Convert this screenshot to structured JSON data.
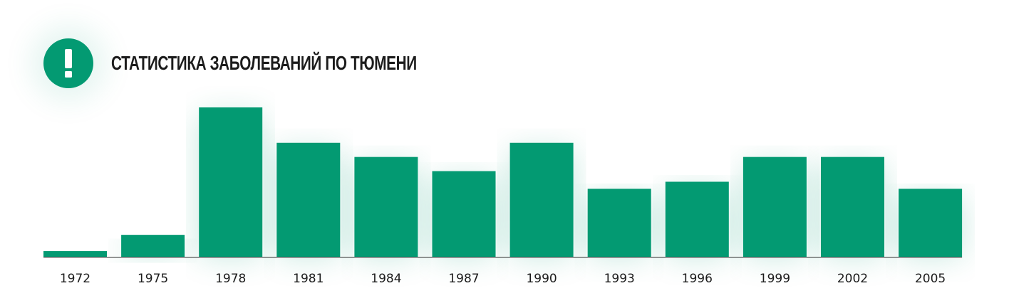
{
  "header": {
    "title": "Статистика заболеваний по Тюмени",
    "icon": "exclamation-icon"
  },
  "colors": {
    "accent": "#039a72",
    "baseline": "#2a2a2a",
    "text": "#1c1c1c"
  },
  "chart_data": {
    "type": "bar",
    "title": "Статистика заболеваний по Тюмени",
    "xlabel": "",
    "ylabel": "",
    "categories": [
      "1972",
      "1975",
      "1978",
      "1981",
      "1984",
      "1987",
      "1990",
      "1993",
      "1996",
      "1999",
      "2002",
      "2005"
    ],
    "values": [
      8,
      31,
      211,
      161,
      141,
      121,
      161,
      96,
      106,
      141,
      141,
      96
    ],
    "ylim": [
      0,
      211
    ],
    "grid": false,
    "legend": "none",
    "bar_color": "#039a72"
  }
}
